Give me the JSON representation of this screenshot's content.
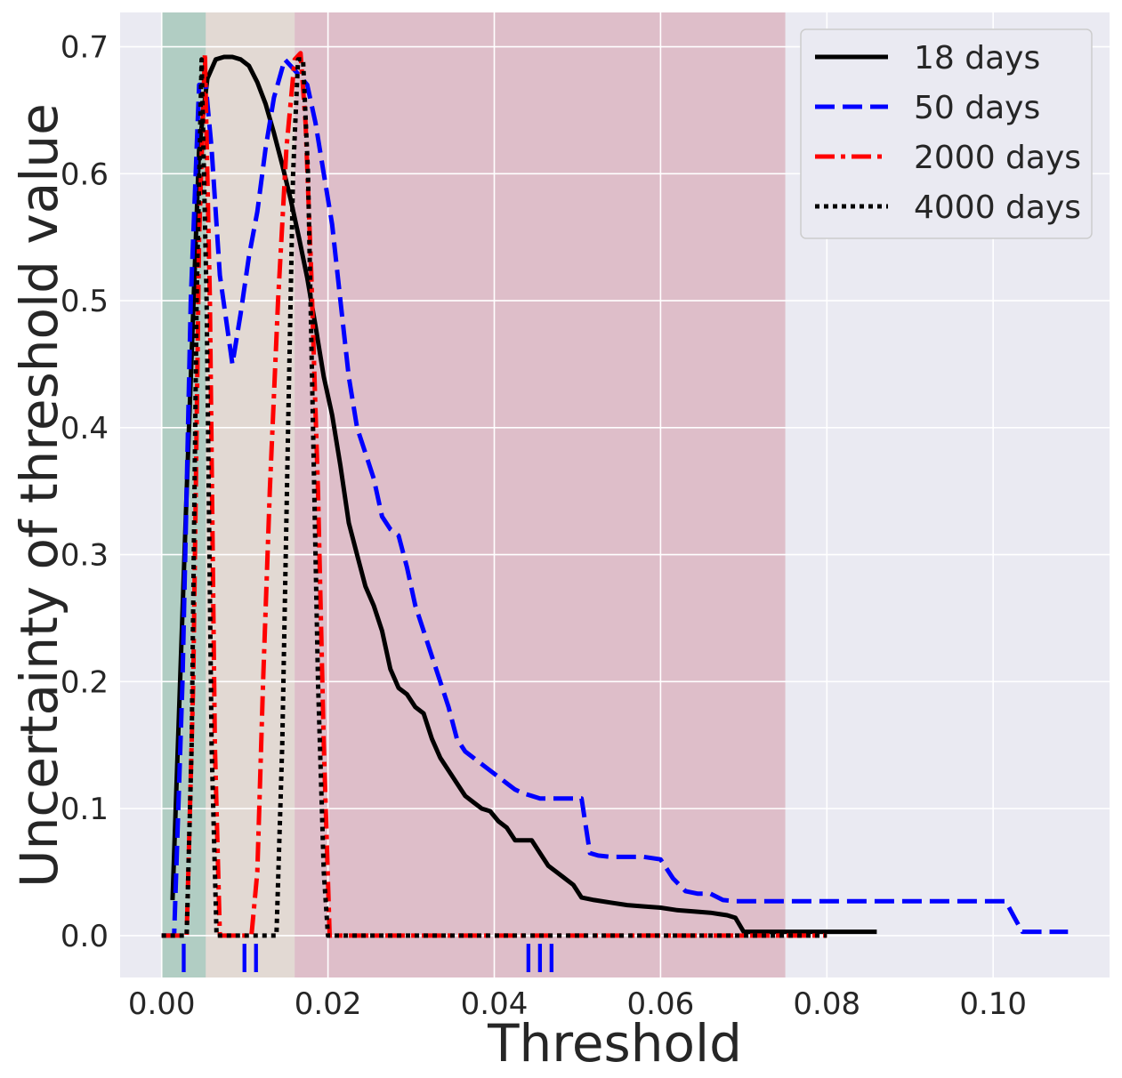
{
  "chart_data": {
    "type": "line",
    "title": "",
    "xlabel": "Threshold",
    "ylabel": "Uncertainty of threshold value",
    "xlim": [
      -0.005,
      0.114
    ],
    "ylim": [
      -0.033,
      0.727
    ],
    "xticks": [
      "0.00",
      "0.02",
      "0.04",
      "0.06",
      "0.08",
      "0.10"
    ],
    "yticks": [
      "0.0",
      "0.1",
      "0.2",
      "0.3",
      "0.4",
      "0.5",
      "0.6",
      "0.7"
    ],
    "grid": true,
    "legend": "top-right",
    "regions": [
      {
        "label": "I",
        "x0": 0.0,
        "x1": 0.0053,
        "color": "#2e8b57"
      },
      {
        "label": "II",
        "x0": 0.0053,
        "x1": 0.016,
        "color": "#d2b48c"
      },
      {
        "label": "III",
        "x0": 0.016,
        "x1": 0.075,
        "color": "#c25a6a"
      }
    ],
    "series": [
      {
        "name": "18 days",
        "color": "#000000",
        "dash": "solid",
        "x": [
          0.0013,
          0.003,
          0.0045,
          0.0055,
          0.0065,
          0.0075,
          0.0085,
          0.0095,
          0.0105,
          0.0115,
          0.0125,
          0.0135,
          0.0145,
          0.0155,
          0.0165,
          0.0175,
          0.0185,
          0.0195,
          0.0205,
          0.0215,
          0.0225,
          0.0235,
          0.0245,
          0.0255,
          0.0265,
          0.0275,
          0.0285,
          0.0295,
          0.0305,
          0.0315,
          0.0325,
          0.0335,
          0.0345,
          0.0355,
          0.0365,
          0.0375,
          0.0385,
          0.0395,
          0.0405,
          0.0415,
          0.0425,
          0.0435,
          0.0445,
          0.0455,
          0.0465,
          0.0475,
          0.0485,
          0.0495,
          0.0505,
          0.052,
          0.054,
          0.056,
          0.058,
          0.06,
          0.062,
          0.064,
          0.066,
          0.067,
          0.068,
          0.069,
          0.07,
          0.075,
          0.08,
          0.086
        ],
        "y": [
          0.028,
          0.35,
          0.62,
          0.675,
          0.69,
          0.692,
          0.692,
          0.69,
          0.685,
          0.672,
          0.655,
          0.632,
          0.607,
          0.58,
          0.55,
          0.518,
          0.48,
          0.44,
          0.41,
          0.37,
          0.325,
          0.3,
          0.275,
          0.26,
          0.24,
          0.21,
          0.195,
          0.19,
          0.18,
          0.175,
          0.155,
          0.14,
          0.13,
          0.12,
          0.11,
          0.105,
          0.1,
          0.098,
          0.09,
          0.085,
          0.075,
          0.075,
          0.075,
          0.065,
          0.055,
          0.05,
          0.045,
          0.04,
          0.03,
          0.028,
          0.026,
          0.024,
          0.023,
          0.022,
          0.02,
          0.019,
          0.018,
          0.017,
          0.016,
          0.014,
          0.003,
          0.003,
          0.003,
          0.003
        ]
      },
      {
        "name": "50 days",
        "color": "#0000ff",
        "dash": "dashed",
        "x": [
          0.0,
          0.0015,
          0.0025,
          0.0035,
          0.0045,
          0.0053,
          0.006,
          0.007,
          0.0085,
          0.0095,
          0.0105,
          0.0115,
          0.0125,
          0.0135,
          0.0148,
          0.0162,
          0.0175,
          0.0185,
          0.0195,
          0.0205,
          0.0215,
          0.0225,
          0.0235,
          0.0245,
          0.0255,
          0.0265,
          0.0275,
          0.0285,
          0.0295,
          0.0305,
          0.0315,
          0.0325,
          0.0335,
          0.0345,
          0.0355,
          0.0365,
          0.0375,
          0.0385,
          0.0395,
          0.0405,
          0.0415,
          0.0425,
          0.0435,
          0.0445,
          0.0455,
          0.0465,
          0.0475,
          0.0485,
          0.0495,
          0.0505,
          0.0515,
          0.0525,
          0.054,
          0.056,
          0.058,
          0.06,
          0.0615,
          0.063,
          0.0645,
          0.066,
          0.0675,
          0.069,
          0.075,
          0.085,
          0.095,
          0.1015,
          0.1025,
          0.1035,
          0.106,
          0.109
        ],
        "y": [
          0.0,
          0.0,
          0.2,
          0.5,
          0.67,
          0.67,
          0.62,
          0.52,
          0.45,
          0.49,
          0.535,
          0.57,
          0.62,
          0.66,
          0.69,
          0.68,
          0.67,
          0.64,
          0.6,
          0.56,
          0.5,
          0.44,
          0.4,
          0.38,
          0.36,
          0.33,
          0.32,
          0.315,
          0.29,
          0.26,
          0.24,
          0.22,
          0.2,
          0.18,
          0.155,
          0.145,
          0.14,
          0.135,
          0.13,
          0.125,
          0.12,
          0.115,
          0.112,
          0.11,
          0.108,
          0.108,
          0.108,
          0.108,
          0.108,
          0.108,
          0.065,
          0.063,
          0.062,
          0.062,
          0.062,
          0.06,
          0.045,
          0.035,
          0.033,
          0.033,
          0.028,
          0.027,
          0.027,
          0.027,
          0.027,
          0.027,
          0.015,
          0.003,
          0.003,
          0.003
        ]
      },
      {
        "name": "2000 days",
        "color": "#ff0000",
        "dash": "dashdot",
        "x": [
          0.0,
          0.002,
          0.003,
          0.0038,
          0.0045,
          0.0052,
          0.0058,
          0.0064,
          0.007,
          0.009,
          0.0108,
          0.0115,
          0.0122,
          0.013,
          0.014,
          0.015,
          0.016,
          0.0167,
          0.0173,
          0.018,
          0.0188,
          0.0195,
          0.0202,
          0.021,
          0.03,
          0.04,
          0.05,
          0.06,
          0.07,
          0.08
        ],
        "y": [
          0.0,
          0.0,
          0.0,
          0.2,
          0.55,
          0.695,
          0.5,
          0.15,
          0.0,
          0.0,
          0.0,
          0.05,
          0.2,
          0.35,
          0.5,
          0.62,
          0.69,
          0.695,
          0.64,
          0.52,
          0.35,
          0.15,
          0.0,
          0.0,
          0.0,
          0.0,
          0.0,
          0.0,
          0.0,
          0.0
        ]
      },
      {
        "name": "4000 days",
        "color": "#000000",
        "dash": "dotted",
        "x": [
          0.0,
          0.002,
          0.003,
          0.0036,
          0.0042,
          0.0048,
          0.0054,
          0.006,
          0.0066,
          0.008,
          0.01,
          0.012,
          0.0138,
          0.0145,
          0.0152,
          0.0158,
          0.0164,
          0.017,
          0.0176,
          0.0182,
          0.0188,
          0.0195,
          0.02,
          0.03,
          0.04,
          0.05,
          0.06,
          0.07,
          0.08
        ],
        "y": [
          0.0,
          0.0,
          0.0,
          0.15,
          0.5,
          0.69,
          0.5,
          0.15,
          0.0,
          0.0,
          0.0,
          0.0,
          0.0,
          0.15,
          0.4,
          0.6,
          0.69,
          0.69,
          0.6,
          0.4,
          0.2,
          0.05,
          0.0,
          0.0,
          0.0,
          0.0,
          0.0,
          0.0,
          0.0
        ]
      }
    ]
  }
}
